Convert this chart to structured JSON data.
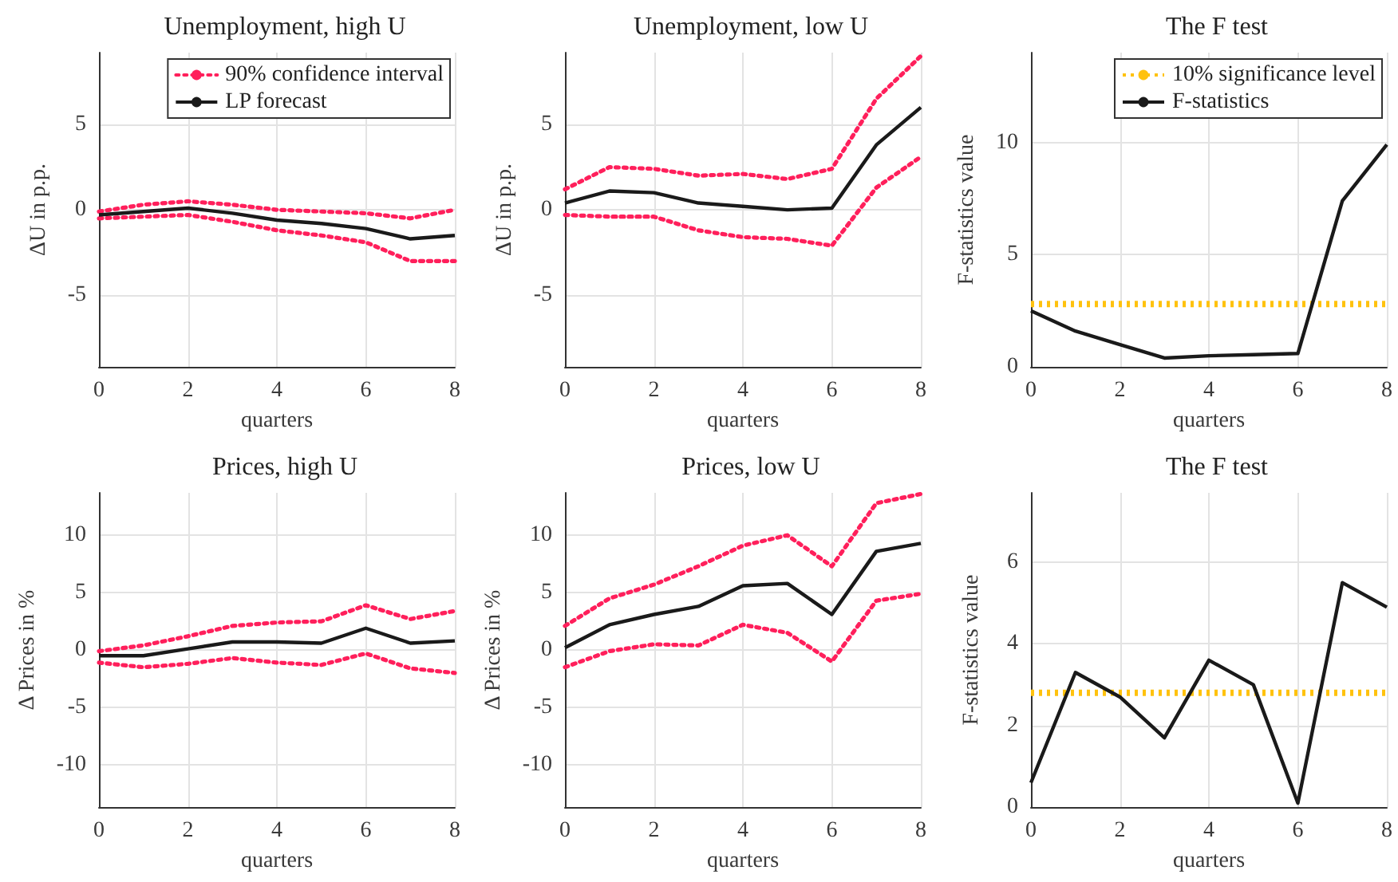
{
  "chart_data": [
    {
      "type": "line",
      "title": "Unemployment, high U",
      "xlabel": "quarters",
      "ylabel": "ΔU in p.p.",
      "x": [
        0,
        1,
        2,
        3,
        4,
        5,
        6,
        7,
        8
      ],
      "xlim": [
        0,
        8
      ],
      "xticks": [
        0,
        2,
        4,
        6,
        8
      ],
      "ylim": [
        -9.2,
        9.2
      ],
      "yticks": [
        -5,
        0,
        5
      ],
      "grid": true,
      "legend": "top right",
      "marker": "none",
      "series": [
        {
          "name": "90% confidence interval",
          "color": "#ff1f5b",
          "line_style": "dotted",
          "values": [
            -0.1,
            0.3,
            0.5,
            0.3,
            0,
            -0.1,
            -0.2,
            -0.5,
            0
          ]
        },
        {
          "name": "LP forecast",
          "color": "#1a1a1a",
          "line_style": "solid",
          "values": [
            -0.3,
            -0.1,
            0.1,
            -0.2,
            -0.6,
            -0.8,
            -1.1,
            -1.7,
            -1.5
          ]
        },
        {
          "color": "#ff1f5b",
          "line_style": "dotted",
          "values": [
            -0.5,
            -0.4,
            -0.3,
            -0.7,
            -1.2,
            -1.5,
            -1.9,
            -3.0,
            -3.0
          ]
        }
      ]
    },
    {
      "type": "line",
      "title": "Unemployment, low U",
      "xlabel": "quarters",
      "ylabel": "ΔU in p.p.",
      "x": [
        0,
        1,
        2,
        3,
        4,
        5,
        6,
        7,
        8
      ],
      "xlim": [
        0,
        8
      ],
      "xticks": [
        0,
        2,
        4,
        6,
        8
      ],
      "ylim": [
        -9.2,
        9.2
      ],
      "yticks": [
        -5,
        0,
        5
      ],
      "grid": true,
      "marker": "none",
      "series": [
        {
          "color": "#ff1f5b",
          "line_style": "dotted",
          "values": [
            1.2,
            2.5,
            2.4,
            2.0,
            2.1,
            1.8,
            2.4,
            6.5,
            9.0
          ]
        },
        {
          "color": "#1a1a1a",
          "line_style": "solid",
          "values": [
            0.4,
            1.1,
            1.0,
            0.4,
            0.2,
            0.0,
            0.1,
            3.8,
            6.0
          ]
        },
        {
          "color": "#ff1f5b",
          "line_style": "dotted",
          "values": [
            -0.3,
            -0.4,
            -0.4,
            -1.2,
            -1.6,
            -1.7,
            -2.1,
            1.3,
            3.1
          ]
        }
      ]
    },
    {
      "type": "line",
      "title": "The F test",
      "xlabel": "quarters",
      "ylabel": "F-statistics value",
      "x": [
        0,
        1,
        2,
        3,
        4,
        5,
        6,
        7,
        8
      ],
      "xlim": [
        0,
        8
      ],
      "xticks": [
        0,
        2,
        4,
        6,
        8
      ],
      "ylim": [
        0,
        14
      ],
      "yticks": [
        0,
        5,
        10
      ],
      "grid": true,
      "legend": "top right",
      "marker": "none",
      "ref_lines": [
        {
          "axis": "y",
          "value": 2.8,
          "label": "10% significance level",
          "color": "#ffc20e",
          "line_style": "dotted"
        }
      ],
      "series": [
        {
          "name": "F-statistics",
          "color": "#1a1a1a",
          "line_style": "solid",
          "values": [
            2.5,
            1.6,
            1.0,
            0.4,
            0.5,
            0.55,
            0.6,
            7.4,
            9.9
          ]
        }
      ]
    },
    {
      "type": "line",
      "title": "Prices, high U",
      "xlabel": "quarters",
      "ylabel": "Δ Prices in %",
      "x": [
        0,
        1,
        2,
        3,
        4,
        5,
        6,
        7,
        8
      ],
      "xlim": [
        0,
        8
      ],
      "xticks": [
        0,
        2,
        4,
        6,
        8
      ],
      "ylim": [
        -13.7,
        13.7
      ],
      "yticks": [
        -10,
        -5,
        0,
        5,
        10
      ],
      "grid": true,
      "marker": "none",
      "series": [
        {
          "color": "#ff1f5b",
          "line_style": "dotted",
          "values": [
            -0.1,
            0.4,
            1.2,
            2.1,
            2.4,
            2.5,
            3.9,
            2.7,
            3.4
          ]
        },
        {
          "color": "#1a1a1a",
          "line_style": "solid",
          "values": [
            -0.5,
            -0.5,
            0.1,
            0.7,
            0.7,
            0.6,
            1.9,
            0.6,
            0.8
          ]
        },
        {
          "color": "#ff1f5b",
          "line_style": "dotted",
          "values": [
            -1.1,
            -1.5,
            -1.2,
            -0.7,
            -1.1,
            -1.3,
            -0.3,
            -1.6,
            -2.0
          ]
        }
      ]
    },
    {
      "type": "line",
      "title": "Prices, low U",
      "xlabel": "quarters",
      "ylabel": "Δ Prices in %",
      "x": [
        0,
        1,
        2,
        3,
        4,
        5,
        6,
        7,
        8
      ],
      "xlim": [
        0,
        8
      ],
      "xticks": [
        0,
        2,
        4,
        6,
        8
      ],
      "ylim": [
        -13.7,
        13.7
      ],
      "yticks": [
        -10,
        -5,
        0,
        5,
        10
      ],
      "grid": true,
      "marker": "none",
      "series": [
        {
          "color": "#ff1f5b",
          "line_style": "dotted",
          "values": [
            2.1,
            4.5,
            5.7,
            7.3,
            9.1,
            10.0,
            7.3,
            12.8,
            13.6
          ]
        },
        {
          "color": "#1a1a1a",
          "line_style": "solid",
          "values": [
            0.2,
            2.2,
            3.1,
            3.8,
            5.6,
            5.8,
            3.1,
            8.6,
            9.3
          ]
        },
        {
          "color": "#ff1f5b",
          "line_style": "dotted",
          "values": [
            -1.5,
            -0.1,
            0.5,
            0.4,
            2.2,
            1.5,
            -1.0,
            4.3,
            4.9
          ]
        }
      ]
    },
    {
      "type": "line",
      "title": "The F test",
      "xlabel": "quarters",
      "ylabel": "F-statistics value",
      "x": [
        0,
        1,
        2,
        3,
        4,
        5,
        6,
        7,
        8
      ],
      "xlim": [
        0,
        8
      ],
      "xticks": [
        0,
        2,
        4,
        6,
        8
      ],
      "ylim": [
        0,
        7.7
      ],
      "yticks": [
        0,
        2,
        4,
        6
      ],
      "grid": true,
      "marker": "none",
      "ref_lines": [
        {
          "axis": "y",
          "value": 2.8,
          "color": "#ffc20e",
          "line_style": "dotted"
        }
      ],
      "series": [
        {
          "color": "#1a1a1a",
          "line_style": "solid",
          "values": [
            0.6,
            3.3,
            2.7,
            1.7,
            3.6,
            3.0,
            0.1,
            5.5,
            4.9
          ]
        }
      ]
    }
  ]
}
